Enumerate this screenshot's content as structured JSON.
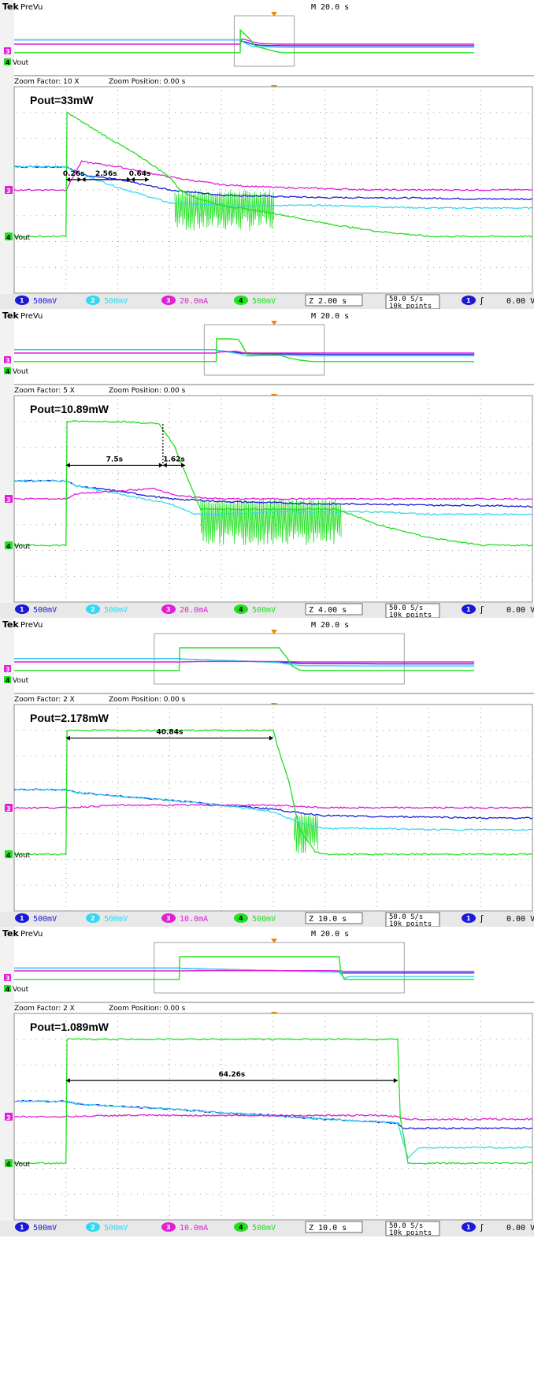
{
  "colors": {
    "ch1": "#1a1ad8",
    "ch2": "#33d9f0",
    "ch3": "#e01fd6",
    "ch4": "#21e021",
    "frame_bg": "#ffffff",
    "status_bg": "#e8e8e8",
    "grid": "#9a9a9a"
  },
  "chart_data": [
    {
      "type": "line",
      "header": {
        "brand": "Tek",
        "mode": "PreVu",
        "timebase": "M 20.0 s"
      },
      "zoom": {
        "factor_text": "Zoom Factor: 10 X",
        "position_text": "Zoom Position: 0.00 s"
      },
      "title": "Pout=33mW",
      "vout_label": "Vout",
      "ch3_marker": "3",
      "ch4_marker": "4",
      "footer": {
        "ch1": {
          "num": "1",
          "scale": "500mV"
        },
        "ch2": {
          "num": "2",
          "scale": "500mV"
        },
        "ch3": {
          "num": "3",
          "scale": "20.0mA"
        },
        "ch4": {
          "num": "4",
          "scale": "500mV"
        },
        "zoom_time": "Z 2.00 s",
        "rate": "50.0 S/s",
        "points": "10k points",
        "trigger_ch": "1",
        "trigger_glyph": "ʃ",
        "trigger_level": "0.00 V"
      },
      "x_unit": "div",
      "x_range": [
        0,
        10
      ],
      "y_range": [
        -4,
        4
      ],
      "annotations": [
        {
          "text": "0.26s",
          "x1": 1.0,
          "x2": 1.3,
          "y": 0.4
        },
        {
          "text": "2.56s",
          "x1": 1.3,
          "x2": 2.25,
          "y": 0.4
        },
        {
          "text": "0.64s",
          "x1": 2.25,
          "x2": 2.6,
          "y": 0.4
        }
      ],
      "series": [
        {
          "name": "Ch1",
          "color_key": "ch1",
          "x": [
            0,
            1.0,
            1.3,
            2.0,
            3.0,
            4.0,
            5.0,
            6.0,
            7.0,
            8.0,
            9.0,
            10.0
          ],
          "y": [
            0.9,
            0.9,
            0.6,
            0.4,
            0.0,
            -0.2,
            -0.25,
            -0.3,
            -0.3,
            -0.32,
            -0.35,
            -0.35
          ]
        },
        {
          "name": "Ch2",
          "color_key": "ch2",
          "x": [
            0,
            1.0,
            1.3,
            2.0,
            3.0,
            4.0,
            5.0,
            6.0,
            7.0,
            8.0,
            9.0,
            10.0
          ],
          "y": [
            0.9,
            0.9,
            0.6,
            0.1,
            -0.5,
            -0.6,
            -0.6,
            -0.6,
            -0.65,
            -0.7,
            -0.7,
            -0.7
          ]
        },
        {
          "name": "Ch3",
          "color_key": "ch3",
          "x": [
            0,
            1.0,
            1.3,
            2.0,
            3.0,
            4.0,
            5.0,
            6.0,
            7.0,
            8.0,
            9.0,
            10.0
          ],
          "y": [
            0.0,
            0.0,
            1.1,
            0.9,
            0.5,
            0.2,
            0.1,
            0.05,
            0.0,
            0.0,
            0.0,
            0.0
          ]
        },
        {
          "name": "Ch4",
          "color_key": "ch4",
          "x": [
            0,
            0.5,
            1.0,
            1.02,
            1.5,
            2.0,
            2.5,
            3.0,
            3.2,
            3.5,
            4.0,
            5.0,
            6.0,
            7.0,
            8.0,
            9.0,
            10.0
          ],
          "y": [
            -1.8,
            -1.8,
            -1.8,
            3.0,
            2.4,
            1.8,
            1.2,
            0.5,
            0.0,
            -0.3,
            -0.6,
            -0.9,
            -1.3,
            -1.6,
            -1.8,
            -1.8,
            -1.8
          ],
          "burst": {
            "x_start": 3.1,
            "x_end": 5.0,
            "y_high": -0.1,
            "y_low": -1.6
          }
        }
      ],
      "preview": {
        "window_x": [
          0.44,
          0.56
        ]
      }
    },
    {
      "type": "line",
      "header": {
        "brand": "Tek",
        "mode": "PreVu",
        "timebase": "M 20.0 s"
      },
      "zoom": {
        "factor_text": "Zoom Factor: 5 X",
        "position_text": "Zoom Position: 0.00 s"
      },
      "title": "Pout=10.89mW",
      "vout_label": "Vout",
      "ch3_marker": "3",
      "ch4_marker": "4",
      "footer": {
        "ch1": {
          "num": "1",
          "scale": "500mV"
        },
        "ch2": {
          "num": "2",
          "scale": "500mV"
        },
        "ch3": {
          "num": "3",
          "scale": "20.0mA"
        },
        "ch4": {
          "num": "4",
          "scale": "500mV"
        },
        "zoom_time": "Z 4.00 s",
        "rate": "50.0 S/s",
        "points": "10k points",
        "trigger_ch": "1",
        "trigger_glyph": "ʃ",
        "trigger_level": "0.00 V"
      },
      "x_unit": "div",
      "x_range": [
        0,
        10
      ],
      "y_range": [
        -4,
        4
      ],
      "annotations": [
        {
          "text": "7.5s",
          "x1": 1.0,
          "x2": 2.87,
          "y": 1.3
        },
        {
          "text": "1.62s",
          "x1": 2.87,
          "x2": 3.3,
          "y": 1.3
        }
      ],
      "series": [
        {
          "name": "Ch1",
          "color_key": "ch1",
          "x": [
            0,
            1.0,
            1.2,
            2.0,
            3.0,
            4.0,
            5.0,
            6.0,
            7.0,
            8.0,
            9.0,
            10.0
          ],
          "y": [
            0.7,
            0.7,
            0.5,
            0.3,
            0.0,
            -0.1,
            -0.15,
            -0.2,
            -0.2,
            -0.25,
            -0.25,
            -0.3
          ]
        },
        {
          "name": "Ch2",
          "color_key": "ch2",
          "x": [
            0,
            1.0,
            1.2,
            2.0,
            3.0,
            3.5,
            4.0,
            5.0,
            6.0,
            7.0,
            8.0,
            9.0,
            10.0
          ],
          "y": [
            0.7,
            0.7,
            0.5,
            0.2,
            -0.2,
            -0.6,
            -0.6,
            -0.5,
            -0.5,
            -0.5,
            -0.6,
            -0.6,
            -0.6
          ]
        },
        {
          "name": "Ch3",
          "color_key": "ch3",
          "x": [
            0,
            1.0,
            1.2,
            2.0,
            2.7,
            3.2,
            4.0,
            5.0,
            6.0,
            7.0,
            8.0,
            9.0,
            10.0
          ],
          "y": [
            0.0,
            0.0,
            0.2,
            0.3,
            0.4,
            0.1,
            0.0,
            0.0,
            0.0,
            0.0,
            0.0,
            0.0,
            0.0
          ]
        },
        {
          "name": "Ch4",
          "color_key": "ch4",
          "x": [
            0,
            0.5,
            1.0,
            1.02,
            2.0,
            2.8,
            3.1,
            3.3,
            3.6,
            6.2,
            6.5,
            7.0,
            8.0,
            9.0,
            10.0
          ],
          "y": [
            -1.8,
            -1.8,
            -1.8,
            3.0,
            3.0,
            2.9,
            2.0,
            1.0,
            -0.4,
            -0.4,
            -0.6,
            -1.0,
            -1.5,
            -1.8,
            -1.8
          ],
          "burst": {
            "x_start": 3.6,
            "x_end": 6.3,
            "y_high": -0.1,
            "y_low": -1.8
          }
        }
      ],
      "preview": {
        "window_x": [
          0.38,
          0.62
        ]
      }
    },
    {
      "type": "line",
      "header": {
        "brand": "Tek",
        "mode": "PreVu",
        "timebase": "M 20.0 s"
      },
      "zoom": {
        "factor_text": "Zoom Factor: 2 X",
        "position_text": "Zoom Position: 0.00 s"
      },
      "title": "Pout=2.178mW",
      "vout_label": "Vout",
      "ch3_marker": "3",
      "ch4_marker": "4",
      "footer": {
        "ch1": {
          "num": "1",
          "scale": "500mV"
        },
        "ch2": {
          "num": "2",
          "scale": "500mV"
        },
        "ch3": {
          "num": "3",
          "scale": "10.0mA"
        },
        "ch4": {
          "num": "4",
          "scale": "500mV"
        },
        "zoom_time": "Z 10.0 s",
        "rate": "50.0 S/s",
        "points": "10k points",
        "trigger_ch": "1",
        "trigger_glyph": "ʃ",
        "trigger_level": "0.00 V"
      },
      "x_unit": "div",
      "x_range": [
        0,
        10
      ],
      "y_range": [
        -4,
        4
      ],
      "annotations": [
        {
          "text": "40.84s",
          "x1": 1.0,
          "x2": 5.0,
          "y": 2.7
        }
      ],
      "series": [
        {
          "name": "Ch1",
          "color_key": "ch1",
          "x": [
            0,
            1.0,
            1.2,
            2.0,
            3.0,
            4.0,
            5.0,
            5.5,
            6.0,
            7.0,
            8.0,
            9.0,
            10.0
          ],
          "y": [
            0.7,
            0.7,
            0.6,
            0.45,
            0.3,
            0.1,
            -0.05,
            -0.2,
            -0.3,
            -0.35,
            -0.35,
            -0.4,
            -0.4
          ]
        },
        {
          "name": "Ch2",
          "color_key": "ch2",
          "x": [
            0,
            1.0,
            1.2,
            2.0,
            3.0,
            4.0,
            5.0,
            5.5,
            6.0,
            7.0,
            8.0,
            9.0,
            10.0
          ],
          "y": [
            0.7,
            0.7,
            0.6,
            0.45,
            0.3,
            0.1,
            -0.15,
            -0.6,
            -0.8,
            -0.8,
            -0.85,
            -0.85,
            -0.85
          ]
        },
        {
          "name": "Ch3",
          "color_key": "ch3",
          "x": [
            0,
            1.0,
            2.0,
            3.0,
            4.0,
            5.0,
            5.5,
            6.0,
            7.0,
            8.0,
            9.0,
            10.0
          ],
          "y": [
            0.0,
            0.0,
            0.1,
            0.1,
            0.1,
            0.1,
            0.05,
            0.0,
            0.0,
            0.0,
            0.0,
            0.0
          ]
        },
        {
          "name": "Ch4",
          "color_key": "ch4",
          "x": [
            0,
            0.5,
            1.0,
            1.02,
            3.0,
            5.0,
            5.05,
            5.3,
            5.5,
            5.8,
            6.0,
            7.0,
            8.0,
            9.0,
            10.0
          ],
          "y": [
            -1.8,
            -1.8,
            -1.8,
            3.0,
            3.0,
            3.0,
            2.6,
            1.0,
            -0.8,
            -1.7,
            -1.8,
            -1.8,
            -1.8,
            -1.8,
            -1.8
          ],
          "burst": {
            "x_start": 5.4,
            "x_end": 5.85,
            "y_high": -0.3,
            "y_low": -1.8
          }
        }
      ],
      "preview": {
        "window_x": [
          0.28,
          0.78
        ]
      }
    },
    {
      "type": "line",
      "header": {
        "brand": "Tek",
        "mode": "PreVu",
        "timebase": "M 20.0 s"
      },
      "zoom": {
        "factor_text": "Zoom Factor: 2 X",
        "position_text": "Zoom Position: 0.00 s"
      },
      "title": "Pout=1.089mW",
      "vout_label": "Vout",
      "ch3_marker": "3",
      "ch4_marker": "4",
      "footer": {
        "ch1": {
          "num": "1",
          "scale": "500mV"
        },
        "ch2": {
          "num": "2",
          "scale": "500mV"
        },
        "ch3": {
          "num": "3",
          "scale": "10.0mA"
        },
        "ch4": {
          "num": "4",
          "scale": "500mV"
        },
        "zoom_time": "Z 10.0 s",
        "rate": "50.0 S/s",
        "points": "10k points",
        "trigger_ch": "1",
        "trigger_glyph": "ʃ",
        "trigger_level": "0.00 V"
      },
      "x_unit": "div",
      "x_range": [
        0,
        10
      ],
      "y_range": [
        -4,
        4
      ],
      "annotations": [
        {
          "text": "64.26s",
          "x1": 1.0,
          "x2": 7.4,
          "y": 1.4
        }
      ],
      "series": [
        {
          "name": "Ch1",
          "color_key": "ch1",
          "x": [
            0,
            1.0,
            1.2,
            2.0,
            3.0,
            4.0,
            5.0,
            6.0,
            7.0,
            7.4,
            7.5,
            8.0,
            9.0,
            10.0
          ],
          "y": [
            0.6,
            0.6,
            0.5,
            0.4,
            0.3,
            0.15,
            0.05,
            -0.1,
            -0.2,
            -0.25,
            -0.45,
            -0.45,
            -0.45,
            -0.45
          ]
        },
        {
          "name": "Ch2",
          "color_key": "ch2",
          "x": [
            0,
            1.0,
            1.2,
            2.0,
            3.0,
            4.0,
            5.0,
            6.0,
            7.0,
            7.4,
            7.6,
            7.8,
            8.0,
            9.0,
            10.0
          ],
          "y": [
            0.6,
            0.6,
            0.5,
            0.4,
            0.3,
            0.15,
            0.05,
            -0.1,
            -0.2,
            -0.25,
            -1.6,
            -1.2,
            -1.2,
            -1.2,
            -1.2
          ]
        },
        {
          "name": "Ch3",
          "color_key": "ch3",
          "x": [
            0,
            1.0,
            2.0,
            3.0,
            4.0,
            5.0,
            6.0,
            7.0,
            7.4,
            7.6,
            8.0,
            9.0,
            10.0
          ],
          "y": [
            0.0,
            0.0,
            0.05,
            0.05,
            0.05,
            0.05,
            0.05,
            0.05,
            0.0,
            -0.1,
            -0.1,
            -0.1,
            -0.1
          ]
        },
        {
          "name": "Ch4",
          "color_key": "ch4",
          "x": [
            0,
            0.5,
            1.0,
            1.02,
            3.0,
            5.0,
            7.0,
            7.4,
            7.45,
            7.6,
            8.0,
            9.0,
            10.0
          ],
          "y": [
            -1.8,
            -1.8,
            -1.8,
            3.0,
            3.0,
            3.0,
            3.0,
            3.0,
            0.0,
            -1.8,
            -1.8,
            -1.8,
            -1.8
          ]
        }
      ],
      "preview": {
        "window_x": [
          0.28,
          0.78
        ]
      }
    }
  ]
}
